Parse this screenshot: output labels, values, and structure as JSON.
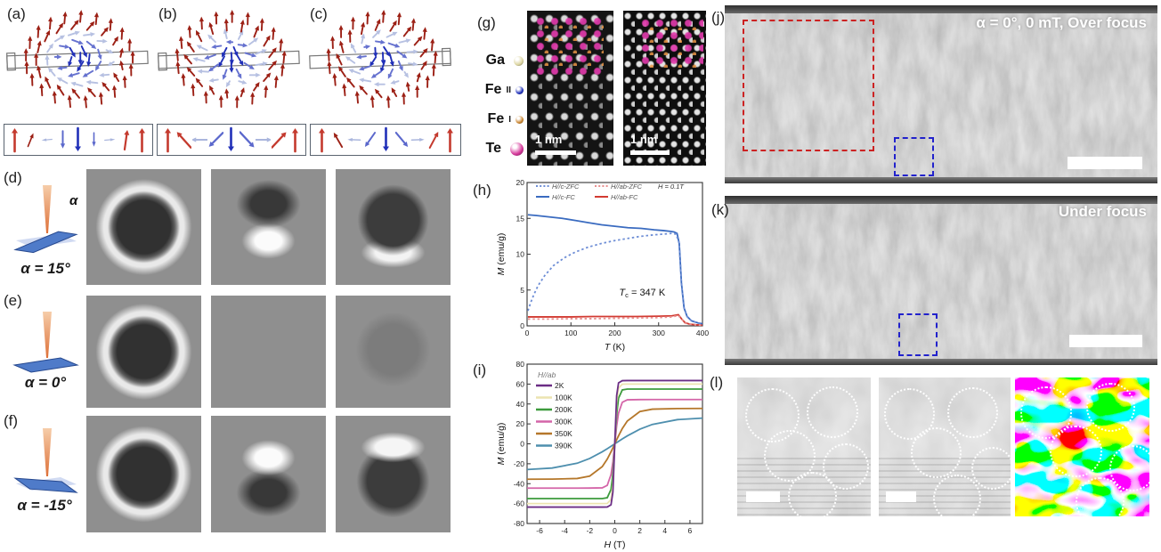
{
  "panel_labels": {
    "a": "(a)",
    "b": "(b)",
    "c": "(c)",
    "d": "(d)",
    "e": "(e)",
    "f": "(f)",
    "g": "(g)",
    "h": "(h)",
    "i": "(i)",
    "j": "(j)",
    "k": "(k)",
    "l": "(l)"
  },
  "spin_textures": {
    "panels": [
      {
        "key": "a",
        "type": "bloch"
      },
      {
        "key": "b",
        "type": "neel"
      },
      {
        "key": "c",
        "type": "intermediate"
      }
    ],
    "arrow_colors": {
      "R1": "#9c2015",
      "R2": "#c43a2e",
      "P": "#aab6dd",
      "B1": "#2130b8",
      "B2": "#5b68cc"
    },
    "strips": {
      "a": [
        [
          0,
          "R2",
          1
        ],
        [
          22,
          "R1",
          0.62
        ],
        [
          -95,
          "P",
          0.45
        ],
        [
          180,
          "B2",
          0.75
        ],
        [
          180,
          "B1",
          1
        ],
        [
          180,
          "B2",
          0.6
        ],
        [
          85,
          "P",
          0.45
        ],
        [
          8,
          "R2",
          0.85
        ],
        [
          0,
          "R2",
          1
        ]
      ],
      "b": [
        [
          0,
          "R2",
          1
        ],
        [
          -42,
          "R2",
          0.9
        ],
        [
          -90,
          "P",
          0.75
        ],
        [
          -135,
          "B2",
          0.85
        ],
        [
          180,
          "B1",
          1
        ],
        [
          137,
          "B2",
          0.9
        ],
        [
          90,
          "P",
          0.75
        ],
        [
          43,
          "R2",
          0.9
        ],
        [
          0,
          "R2",
          1
        ]
      ],
      "c": [
        [
          0,
          "R2",
          1
        ],
        [
          -30,
          "R1",
          0.72
        ],
        [
          -88,
          "P",
          0.55
        ],
        [
          -145,
          "B2",
          0.75
        ],
        [
          180,
          "B1",
          1
        ],
        [
          140,
          "B2",
          0.8
        ],
        [
          88,
          "P",
          0.55
        ],
        [
          28,
          "R2",
          0.78
        ],
        [
          0,
          "R2",
          1
        ]
      ]
    }
  },
  "tilt_series": {
    "alpha_symbol": "α",
    "rows": [
      {
        "key": "d",
        "alpha_text": "α = 15°",
        "alpha_deg": -14,
        "show_symbol": true,
        "cells": [
          "ring-strong",
          "dipole-dark-top",
          "disk-bright-bottom"
        ]
      },
      {
        "key": "e",
        "alpha_text": "α = 0°",
        "alpha_deg": 0,
        "show_symbol": false,
        "cells": [
          "ring-strong",
          "uniform",
          "disk-faint"
        ]
      },
      {
        "key": "f",
        "alpha_text": "α = -15°",
        "alpha_deg": 13,
        "show_symbol": false,
        "cells": [
          "ring-strong",
          "dipole-bright-top",
          "disk-bright-top"
        ]
      }
    ]
  },
  "stem_panel": {
    "legend": [
      {
        "name": "Ga",
        "sub": "",
        "color": "#ddd6a2",
        "size": 11
      },
      {
        "name": "Fe",
        "sub": "II",
        "color": "#2233bb",
        "size": 9
      },
      {
        "name": "Fe",
        "sub": "I",
        "color": "#cc8833",
        "size": 9
      },
      {
        "name": "Te",
        "sub": "",
        "color": "#d6399b",
        "size": 15
      }
    ],
    "scalebar_left": "1 nm",
    "scalebar_right": "1 nm"
  },
  "chart_data": [
    {
      "type": "line",
      "panel": "h",
      "xlabel_sym": "T",
      "xlabel_rest": " (K)",
      "ylabel_sym": "M",
      "ylabel_rest": " (emu/g)",
      "xlim": [
        0,
        400
      ],
      "ylim": [
        0,
        20
      ],
      "xticks": [
        0,
        100,
        200,
        300,
        400
      ],
      "yticks": [
        0,
        5,
        10,
        15,
        20
      ],
      "note": "H = 0.1T",
      "annotation": {
        "sym": "T",
        "sub": "c",
        "rest": " = 347 K"
      },
      "series": [
        {
          "name": "H//c-ZFC",
          "color": "#6e8ed6",
          "dash": true,
          "x": [
            2,
            8,
            15,
            25,
            40,
            60,
            85,
            110,
            140,
            170,
            200,
            230,
            260,
            290,
            310,
            330,
            340,
            347,
            352,
            358,
            365,
            375,
            390,
            400
          ],
          "y": [
            2.1,
            3.2,
            4.3,
            5.6,
            7.0,
            8.4,
            9.5,
            10.3,
            11.0,
            11.5,
            11.9,
            12.2,
            12.5,
            12.7,
            12.8,
            12.9,
            12.8,
            11.5,
            6.0,
            2.5,
            1.3,
            0.7,
            0.4,
            0.3
          ]
        },
        {
          "name": "H//ab-ZFC",
          "color": "#e89090",
          "dash": true,
          "x": [
            2,
            50,
            100,
            150,
            200,
            250,
            300,
            330,
            345,
            352,
            360,
            370,
            385,
            400
          ],
          "y": [
            0.95,
            0.95,
            1.0,
            1.0,
            1.05,
            1.1,
            1.15,
            1.25,
            1.45,
            0.95,
            0.4,
            0.22,
            0.13,
            0.09
          ]
        },
        {
          "name": "H//c-FC",
          "color": "#3a6bc0",
          "dash": false,
          "x": [
            2,
            20,
            50,
            80,
            110,
            140,
            170,
            200,
            230,
            260,
            290,
            310,
            325,
            335,
            342,
            347,
            352,
            358,
            365,
            375,
            390,
            400
          ],
          "y": [
            15.5,
            15.4,
            15.2,
            15.0,
            14.7,
            14.4,
            14.1,
            13.9,
            13.7,
            13.6,
            13.4,
            13.3,
            13.2,
            13.1,
            12.9,
            11.5,
            6.0,
            2.5,
            1.3,
            0.7,
            0.4,
            0.3
          ]
        },
        {
          "name": "H//ab-FC",
          "color": "#d23b32",
          "dash": false,
          "x": [
            2,
            50,
            100,
            150,
            200,
            250,
            300,
            330,
            345,
            352,
            360,
            370,
            385,
            400
          ],
          "y": [
            1.25,
            1.25,
            1.25,
            1.3,
            1.3,
            1.3,
            1.35,
            1.4,
            1.55,
            1.0,
            0.45,
            0.25,
            0.15,
            0.1
          ]
        }
      ]
    },
    {
      "type": "line",
      "panel": "i",
      "legend_title": "H//ab",
      "xlabel_sym": "H",
      "xlabel_rest": " (T)",
      "ylabel_sym": "M",
      "ylabel_rest": " (emu/g)",
      "xlim": [
        -7,
        7
      ],
      "ylim": [
        -80,
        80
      ],
      "xticks": [
        -6,
        -4,
        -2,
        0,
        2,
        4,
        6
      ],
      "yticks": [
        -80,
        -60,
        -40,
        -20,
        0,
        20,
        40,
        60,
        80
      ],
      "x": [
        -7,
        -5,
        -3,
        -2,
        -1,
        -0.6,
        -0.3,
        -0.15,
        0,
        0.15,
        0.3,
        0.6,
        1,
        2,
        3,
        5,
        7
      ],
      "series": [
        {
          "name": "2K",
          "color": "#6b2d85",
          "y": [
            -63.5,
            -63.5,
            -63.5,
            -63.5,
            -63.5,
            -63.4,
            -61.2,
            -48.4,
            0,
            48.4,
            61.2,
            63.4,
            63.5,
            63.5,
            63.5,
            63.5,
            63.5
          ]
        },
        {
          "name": "100K",
          "color": "#ece4b0",
          "y": [
            -60,
            -60,
            -60,
            -60,
            -60,
            -59.9,
            -55.9,
            -40.9,
            0,
            40.9,
            55.9,
            59.9,
            60,
            60,
            60,
            60,
            60
          ]
        },
        {
          "name": "200K",
          "color": "#3d9b3d",
          "y": [
            -55,
            -55,
            -55,
            -55,
            -55,
            -54.1,
            -45.8,
            -29.5,
            0,
            29.5,
            45.8,
            54.1,
            55,
            55,
            55,
            55,
            55
          ]
        },
        {
          "name": "300K",
          "color": "#d465a8",
          "y": [
            -44.5,
            -44.5,
            -44.5,
            -44.4,
            -44.2,
            -41.7,
            -30.9,
            -18,
            0,
            18,
            30.9,
            41.7,
            44.2,
            44.4,
            44.5,
            44.5,
            44.5
          ]
        },
        {
          "name": "350K",
          "color": "#b5772a",
          "y": [
            -35.5,
            -35.4,
            -34.8,
            -32.4,
            -22.9,
            -15.3,
            -8.0,
            -4.1,
            0,
            4.1,
            8.0,
            15.3,
            22.9,
            32.4,
            34.8,
            35.4,
            35.5
          ]
        },
        {
          "name": "390K",
          "color": "#4e8fae",
          "y": [
            -25.8,
            -24.3,
            -19.5,
            -14.7,
            -8.0,
            -4.9,
            -2.5,
            -1.2,
            0,
            1.2,
            2.5,
            4.9,
            8.0,
            14.7,
            19.5,
            24.3,
            25.8
          ]
        }
      ]
    }
  ],
  "ltem_panels": {
    "j_caption": "α = 0°, 0 mT, Over focus",
    "k_caption": "Under focus",
    "l_circles": {
      "img1": [
        [
          25,
          26,
          19
        ],
        [
          70,
          24,
          18
        ],
        [
          38,
          55,
          18
        ],
        [
          80,
          63,
          16
        ],
        [
          55,
          84,
          17
        ]
      ],
      "img2": [
        [
          22,
          25,
          18
        ],
        [
          70,
          24,
          18
        ],
        [
          42,
          53,
          18
        ],
        [
          85,
          64,
          15
        ],
        [
          58,
          86,
          17
        ]
      ],
      "img3": [
        [
          22,
          24,
          18
        ],
        [
          70,
          20,
          17
        ],
        [
          44,
          52,
          18
        ],
        [
          86,
          64,
          16
        ],
        [
          62,
          88,
          17
        ]
      ]
    }
  }
}
